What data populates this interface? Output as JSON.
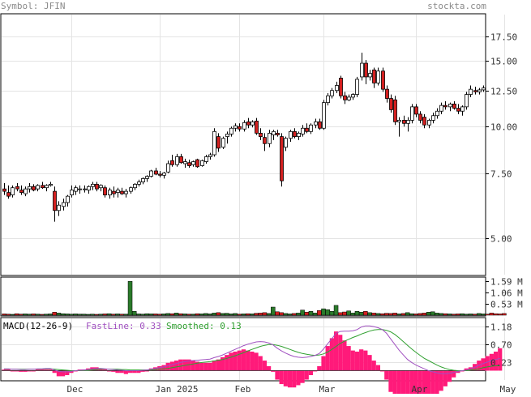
{
  "header": {
    "symbol_label": "Symbol: JFIN",
    "site_label": "stockta.com"
  },
  "chart_data": [
    {
      "type": "candlestick",
      "symbol": "JFIN",
      "title": "Symbol: JFIN",
      "x_labels": [
        "Dec",
        "Jan 2025",
        "Feb",
        "Mar",
        "Apr",
        "May"
      ],
      "x_label_index": [
        16,
        37,
        56,
        76,
        98,
        119
      ],
      "y_ticks": [
        5.0,
        7.5,
        10.0,
        12.5,
        15.0,
        17.5
      ],
      "ylim": [
        4.0,
        20.0
      ],
      "scale": "log",
      "grid": true,
      "up_color": "#ffffff",
      "down_color": "#d42020",
      "candles": [
        {
          "o": 6.8,
          "h": 7.05,
          "l": 6.55,
          "c": 6.7
        },
        {
          "o": 6.65,
          "h": 6.95,
          "l": 6.4,
          "c": 6.5
        },
        {
          "o": 6.55,
          "h": 6.95,
          "l": 6.45,
          "c": 6.85
        },
        {
          "o": 6.9,
          "h": 7.05,
          "l": 6.7,
          "c": 6.8
        },
        {
          "o": 6.75,
          "h": 6.95,
          "l": 6.55,
          "c": 6.65
        },
        {
          "o": 6.6,
          "h": 6.9,
          "l": 6.5,
          "c": 6.8
        },
        {
          "o": 6.8,
          "h": 7.05,
          "l": 6.65,
          "c": 6.9
        },
        {
          "o": 6.9,
          "h": 7.0,
          "l": 6.7,
          "c": 6.75
        },
        {
          "o": 6.8,
          "h": 7.0,
          "l": 6.7,
          "c": 6.95
        },
        {
          "o": 6.95,
          "h": 7.1,
          "l": 6.8,
          "c": 6.85
        },
        {
          "o": 6.85,
          "h": 7.0,
          "l": 6.7,
          "c": 6.95
        },
        {
          "o": 6.95,
          "h": 7.1,
          "l": 6.9,
          "c": 7.0
        },
        {
          "o": 6.7,
          "h": 6.9,
          "l": 5.55,
          "c": 5.95
        },
        {
          "o": 5.95,
          "h": 6.3,
          "l": 5.75,
          "c": 6.15
        },
        {
          "o": 6.1,
          "h": 6.4,
          "l": 5.95,
          "c": 6.25
        },
        {
          "o": 6.25,
          "h": 6.55,
          "l": 6.1,
          "c": 6.5
        },
        {
          "o": 6.55,
          "h": 6.95,
          "l": 6.45,
          "c": 6.75
        },
        {
          "o": 6.7,
          "h": 6.95,
          "l": 6.55,
          "c": 6.85
        },
        {
          "o": 6.8,
          "h": 6.95,
          "l": 6.6,
          "c": 6.8
        },
        {
          "o": 6.8,
          "h": 6.95,
          "l": 6.65,
          "c": 6.8
        },
        {
          "o": 6.75,
          "h": 6.95,
          "l": 6.6,
          "c": 6.9
        },
        {
          "o": 6.9,
          "h": 7.1,
          "l": 6.75,
          "c": 7.0
        },
        {
          "o": 7.0,
          "h": 7.1,
          "l": 6.7,
          "c": 6.8
        },
        {
          "o": 6.85,
          "h": 7.0,
          "l": 6.7,
          "c": 6.95
        },
        {
          "o": 6.85,
          "h": 6.95,
          "l": 6.45,
          "c": 6.55
        },
        {
          "o": 6.55,
          "h": 6.85,
          "l": 6.4,
          "c": 6.75
        },
        {
          "o": 6.7,
          "h": 6.9,
          "l": 6.45,
          "c": 6.6
        },
        {
          "o": 6.65,
          "h": 6.85,
          "l": 6.45,
          "c": 6.75
        },
        {
          "o": 6.7,
          "h": 6.85,
          "l": 6.55,
          "c": 6.6
        },
        {
          "o": 6.6,
          "h": 6.8,
          "l": 6.45,
          "c": 6.7
        },
        {
          "o": 6.7,
          "h": 6.9,
          "l": 6.6,
          "c": 6.85
        },
        {
          "o": 6.85,
          "h": 7.05,
          "l": 6.75,
          "c": 7.0
        },
        {
          "o": 7.0,
          "h": 7.2,
          "l": 6.9,
          "c": 7.1
        },
        {
          "o": 7.1,
          "h": 7.3,
          "l": 7.0,
          "c": 7.25
        },
        {
          "o": 7.25,
          "h": 7.4,
          "l": 7.1,
          "c": 7.35
        },
        {
          "o": 7.35,
          "h": 7.65,
          "l": 7.3,
          "c": 7.6
        },
        {
          "o": 7.6,
          "h": 7.75,
          "l": 7.4,
          "c": 7.45
        },
        {
          "o": 7.45,
          "h": 7.6,
          "l": 7.3,
          "c": 7.4
        },
        {
          "o": 7.4,
          "h": 7.55,
          "l": 7.25,
          "c": 7.5
        },
        {
          "o": 7.55,
          "h": 8.1,
          "l": 7.5,
          "c": 7.95
        },
        {
          "o": 8.1,
          "h": 8.4,
          "l": 7.8,
          "c": 7.9
        },
        {
          "o": 7.9,
          "h": 8.45,
          "l": 7.8,
          "c": 8.3
        },
        {
          "o": 8.3,
          "h": 8.45,
          "l": 7.95,
          "c": 8.0
        },
        {
          "o": 7.95,
          "h": 8.2,
          "l": 7.75,
          "c": 8.05
        },
        {
          "o": 8.0,
          "h": 8.15,
          "l": 7.75,
          "c": 7.85
        },
        {
          "o": 7.9,
          "h": 8.1,
          "l": 7.8,
          "c": 8.05
        },
        {
          "o": 8.15,
          "h": 8.2,
          "l": 7.75,
          "c": 7.8
        },
        {
          "o": 7.85,
          "h": 8.15,
          "l": 7.8,
          "c": 8.1
        },
        {
          "o": 8.05,
          "h": 8.4,
          "l": 7.95,
          "c": 8.3
        },
        {
          "o": 8.3,
          "h": 8.5,
          "l": 8.15,
          "c": 8.4
        },
        {
          "o": 8.4,
          "h": 9.9,
          "l": 8.3,
          "c": 9.7
        },
        {
          "o": 9.4,
          "h": 9.6,
          "l": 8.55,
          "c": 8.75
        },
        {
          "o": 8.8,
          "h": 9.4,
          "l": 8.7,
          "c": 9.3
        },
        {
          "o": 9.4,
          "h": 9.7,
          "l": 9.0,
          "c": 9.55
        },
        {
          "o": 9.55,
          "h": 10.0,
          "l": 9.4,
          "c": 9.9
        },
        {
          "o": 9.9,
          "h": 10.2,
          "l": 9.7,
          "c": 10.05
        },
        {
          "o": 10.0,
          "h": 10.2,
          "l": 9.7,
          "c": 9.85
        },
        {
          "o": 9.85,
          "h": 10.4,
          "l": 9.7,
          "c": 10.25
        },
        {
          "o": 10.3,
          "h": 10.55,
          "l": 9.9,
          "c": 10.1
        },
        {
          "o": 10.1,
          "h": 10.4,
          "l": 9.95,
          "c": 10.3
        },
        {
          "o": 10.35,
          "h": 10.55,
          "l": 9.5,
          "c": 9.6
        },
        {
          "o": 9.6,
          "h": 9.9,
          "l": 9.2,
          "c": 9.4
        },
        {
          "o": 9.35,
          "h": 9.6,
          "l": 8.6,
          "c": 9.0
        },
        {
          "o": 9.0,
          "h": 9.8,
          "l": 8.8,
          "c": 9.6
        },
        {
          "o": 9.5,
          "h": 9.8,
          "l": 9.2,
          "c": 9.7
        },
        {
          "o": 9.6,
          "h": 9.8,
          "l": 9.4,
          "c": 9.5
        },
        {
          "o": 9.4,
          "h": 9.6,
          "l": 6.9,
          "c": 7.15
        },
        {
          "o": 8.8,
          "h": 9.4,
          "l": 8.6,
          "c": 9.3
        },
        {
          "o": 9.3,
          "h": 9.8,
          "l": 9.1,
          "c": 9.7
        },
        {
          "o": 9.7,
          "h": 9.9,
          "l": 9.3,
          "c": 9.4
        },
        {
          "o": 9.4,
          "h": 9.7,
          "l": 9.2,
          "c": 9.6
        },
        {
          "o": 9.55,
          "h": 10.1,
          "l": 9.4,
          "c": 9.9
        },
        {
          "o": 9.9,
          "h": 10.2,
          "l": 9.6,
          "c": 9.7
        },
        {
          "o": 9.7,
          "h": 10.2,
          "l": 9.55,
          "c": 10.1
        },
        {
          "o": 10.1,
          "h": 10.5,
          "l": 9.9,
          "c": 10.3
        },
        {
          "o": 10.3,
          "h": 10.5,
          "l": 9.8,
          "c": 9.9
        },
        {
          "o": 9.9,
          "h": 11.8,
          "l": 9.8,
          "c": 11.6
        },
        {
          "o": 11.6,
          "h": 12.3,
          "l": 11.4,
          "c": 12.1
        },
        {
          "o": 12.1,
          "h": 12.7,
          "l": 11.9,
          "c": 12.5
        },
        {
          "o": 12.5,
          "h": 13.2,
          "l": 12.3,
          "c": 12.9
        },
        {
          "o": 13.5,
          "h": 13.7,
          "l": 11.9,
          "c": 12.1
        },
        {
          "o": 12.1,
          "h": 12.4,
          "l": 11.5,
          "c": 11.8
        },
        {
          "o": 11.8,
          "h": 12.2,
          "l": 11.7,
          "c": 12.0
        },
        {
          "o": 12.0,
          "h": 12.3,
          "l": 11.8,
          "c": 12.2
        },
        {
          "o": 12.2,
          "h": 13.6,
          "l": 12.0,
          "c": 13.4
        },
        {
          "o": 13.6,
          "h": 15.8,
          "l": 13.3,
          "c": 14.8
        },
        {
          "o": 14.8,
          "h": 15.1,
          "l": 13.0,
          "c": 13.6
        },
        {
          "o": 13.6,
          "h": 14.2,
          "l": 13.3,
          "c": 13.9
        },
        {
          "o": 14.2,
          "h": 14.4,
          "l": 12.7,
          "c": 13.1
        },
        {
          "o": 13.1,
          "h": 14.4,
          "l": 12.9,
          "c": 14.1
        },
        {
          "o": 14.1,
          "h": 14.4,
          "l": 12.4,
          "c": 12.6
        },
        {
          "o": 12.6,
          "h": 12.9,
          "l": 11.6,
          "c": 11.9
        },
        {
          "o": 11.9,
          "h": 12.2,
          "l": 10.9,
          "c": 11.1
        },
        {
          "o": 11.8,
          "h": 12.1,
          "l": 10.1,
          "c": 10.3
        },
        {
          "o": 10.3,
          "h": 10.6,
          "l": 9.4,
          "c": 10.4
        },
        {
          "o": 10.4,
          "h": 10.7,
          "l": 10.0,
          "c": 10.2
        },
        {
          "o": 10.2,
          "h": 10.6,
          "l": 9.7,
          "c": 10.4
        },
        {
          "o": 10.4,
          "h": 11.5,
          "l": 10.2,
          "c": 11.3
        },
        {
          "o": 11.3,
          "h": 11.5,
          "l": 10.6,
          "c": 10.8
        },
        {
          "o": 10.8,
          "h": 11.0,
          "l": 10.2,
          "c": 10.4
        },
        {
          "o": 10.6,
          "h": 10.8,
          "l": 9.9,
          "c": 10.1
        },
        {
          "o": 10.1,
          "h": 10.5,
          "l": 9.9,
          "c": 10.4
        },
        {
          "o": 10.4,
          "h": 10.9,
          "l": 10.2,
          "c": 10.7
        },
        {
          "o": 10.7,
          "h": 11.2,
          "l": 10.5,
          "c": 11.0
        },
        {
          "o": 11.0,
          "h": 11.6,
          "l": 10.8,
          "c": 11.4
        },
        {
          "o": 11.4,
          "h": 11.7,
          "l": 11.1,
          "c": 11.3
        },
        {
          "o": 11.3,
          "h": 11.6,
          "l": 11.0,
          "c": 11.5
        },
        {
          "o": 11.5,
          "h": 11.7,
          "l": 11.1,
          "c": 11.2
        },
        {
          "o": 11.2,
          "h": 11.5,
          "l": 10.8,
          "c": 11.0
        },
        {
          "o": 11.0,
          "h": 11.4,
          "l": 10.7,
          "c": 11.3
        },
        {
          "o": 11.3,
          "h": 12.4,
          "l": 11.1,
          "c": 12.2
        },
        {
          "o": 12.2,
          "h": 12.9,
          "l": 12.0,
          "c": 12.6
        },
        {
          "o": 12.5,
          "h": 12.8,
          "l": 12.2,
          "c": 12.4
        },
        {
          "o": 12.4,
          "h": 12.7,
          "l": 12.2,
          "c": 12.55
        },
        {
          "o": 12.55,
          "h": 12.9,
          "l": 12.4,
          "c": 12.7
        }
      ]
    },
    {
      "type": "bar",
      "title": "Volume",
      "y_ticks": [
        0.53,
        1.06,
        1.59
      ],
      "y_tick_labels": [
        "0.53 M",
        "1.06 M",
        "1.59 M"
      ],
      "ylim": [
        0,
        1.75
      ],
      "up_color": "#2a7a2a",
      "down_color": "#d42020",
      "values": [
        0.06,
        0.05,
        0.04,
        0.07,
        0.05,
        0.06,
        0.05,
        0.06,
        0.05,
        0.04,
        0.05,
        0.06,
        0.14,
        0.1,
        0.07,
        0.06,
        0.05,
        0.06,
        0.05,
        0.05,
        0.04,
        0.05,
        0.04,
        0.05,
        0.06,
        0.07,
        0.05,
        0.06,
        0.05,
        0.05,
        1.59,
        0.18,
        0.06,
        0.05,
        0.07,
        0.06,
        0.06,
        0.05,
        0.06,
        0.08,
        0.07,
        0.1,
        0.07,
        0.06,
        0.05,
        0.05,
        0.07,
        0.06,
        0.08,
        0.06,
        0.1,
        0.12,
        0.08,
        0.09,
        0.06,
        0.08,
        0.05,
        0.06,
        0.07,
        0.06,
        0.09,
        0.1,
        0.12,
        0.08,
        0.38,
        0.16,
        0.12,
        0.08,
        0.06,
        0.08,
        0.1,
        0.24,
        0.14,
        0.18,
        0.1,
        0.22,
        0.3,
        0.26,
        0.18,
        0.46,
        0.12,
        0.15,
        0.2,
        0.1,
        0.18,
        0.14,
        0.18,
        0.12,
        0.1,
        0.08,
        0.07,
        0.09,
        0.08,
        0.1,
        0.06,
        0.08,
        0.12,
        0.07,
        0.06,
        0.08,
        0.1,
        0.14,
        0.16,
        0.1,
        0.08,
        0.07,
        0.06,
        0.05,
        0.06,
        0.07,
        0.05,
        0.06,
        0.05,
        0.08,
        0.06,
        0.05,
        0.1,
        0.07,
        0.06,
        0.08
      ]
    },
    {
      "type": "line",
      "title": "MACD(12-26-9)",
      "legend": [
        {
          "name": "FastLine:",
          "value": "0.33",
          "color": "#a050c0"
        },
        {
          "name": "Smoothed:",
          "value": "0.13",
          "color": "#30a030"
        }
      ],
      "y_ticks": [
        0.23,
        0.7,
        1.18
      ],
      "y_tick_labels": [
        "0.23",
        "0.70",
        "1.18"
      ],
      "ylim": [
        -0.25,
        1.4
      ],
      "histogram_color": "#ff1a7a",
      "fast": [
        0.05,
        0.05,
        0.04,
        0.04,
        0.03,
        0.03,
        0.04,
        0.04,
        0.05,
        0.05,
        0.06,
        0.06,
        0.02,
        -0.02,
        -0.03,
        -0.03,
        -0.02,
        0.0,
        0.01,
        0.02,
        0.03,
        0.05,
        0.06,
        0.06,
        0.05,
        0.04,
        0.03,
        0.02,
        0.01,
        0.0,
        0.0,
        0.0,
        0.0,
        0.01,
        0.02,
        0.04,
        0.06,
        0.08,
        0.1,
        0.13,
        0.16,
        0.19,
        0.22,
        0.24,
        0.26,
        0.27,
        0.28,
        0.29,
        0.3,
        0.31,
        0.35,
        0.38,
        0.42,
        0.47,
        0.52,
        0.57,
        0.62,
        0.67,
        0.71,
        0.74,
        0.77,
        0.78,
        0.77,
        0.74,
        0.69,
        0.6,
        0.53,
        0.47,
        0.42,
        0.38,
        0.36,
        0.35,
        0.36,
        0.38,
        0.41,
        0.46,
        0.58,
        0.72,
        0.86,
        1.0,
        1.05,
        1.06,
        1.06,
        1.07,
        1.1,
        1.17,
        1.2,
        1.2,
        1.18,
        1.15,
        1.1,
        1.0,
        0.85,
        0.7,
        0.55,
        0.42,
        0.3,
        0.22,
        0.15,
        0.1,
        0.05,
        0.0,
        -0.03,
        -0.06,
        -0.08,
        -0.08,
        -0.07,
        -0.05,
        -0.02,
        0.0,
        0.02,
        0.05,
        0.09,
        0.14,
        0.19,
        0.23,
        0.27,
        0.3,
        0.33
      ],
      "smoothed": [
        0.04,
        0.04,
        0.04,
        0.04,
        0.04,
        0.04,
        0.04,
        0.04,
        0.04,
        0.04,
        0.05,
        0.05,
        0.04,
        0.03,
        0.02,
        0.01,
        0.0,
        0.0,
        0.0,
        0.01,
        0.01,
        0.02,
        0.03,
        0.04,
        0.04,
        0.04,
        0.04,
        0.04,
        0.03,
        0.03,
        0.02,
        0.02,
        0.02,
        0.02,
        0.02,
        0.02,
        0.03,
        0.04,
        0.05,
        0.06,
        0.08,
        0.1,
        0.12,
        0.14,
        0.16,
        0.18,
        0.2,
        0.22,
        0.23,
        0.24,
        0.26,
        0.28,
        0.3,
        0.33,
        0.36,
        0.4,
        0.44,
        0.48,
        0.53,
        0.57,
        0.61,
        0.65,
        0.68,
        0.7,
        0.7,
        0.68,
        0.65,
        0.61,
        0.57,
        0.53,
        0.49,
        0.46,
        0.44,
        0.42,
        0.41,
        0.42,
        0.45,
        0.5,
        0.57,
        0.65,
        0.73,
        0.79,
        0.84,
        0.89,
        0.93,
        0.98,
        1.02,
        1.06,
        1.09,
        1.1,
        1.1,
        1.08,
        1.04,
        0.97,
        0.88,
        0.78,
        0.68,
        0.58,
        0.49,
        0.41,
        0.33,
        0.27,
        0.21,
        0.15,
        0.1,
        0.06,
        0.03,
        0.01,
        0.0,
        0.0,
        0.0,
        0.02,
        0.03,
        0.05,
        0.08,
        0.1,
        0.12,
        0.13,
        0.13
      ]
    }
  ]
}
